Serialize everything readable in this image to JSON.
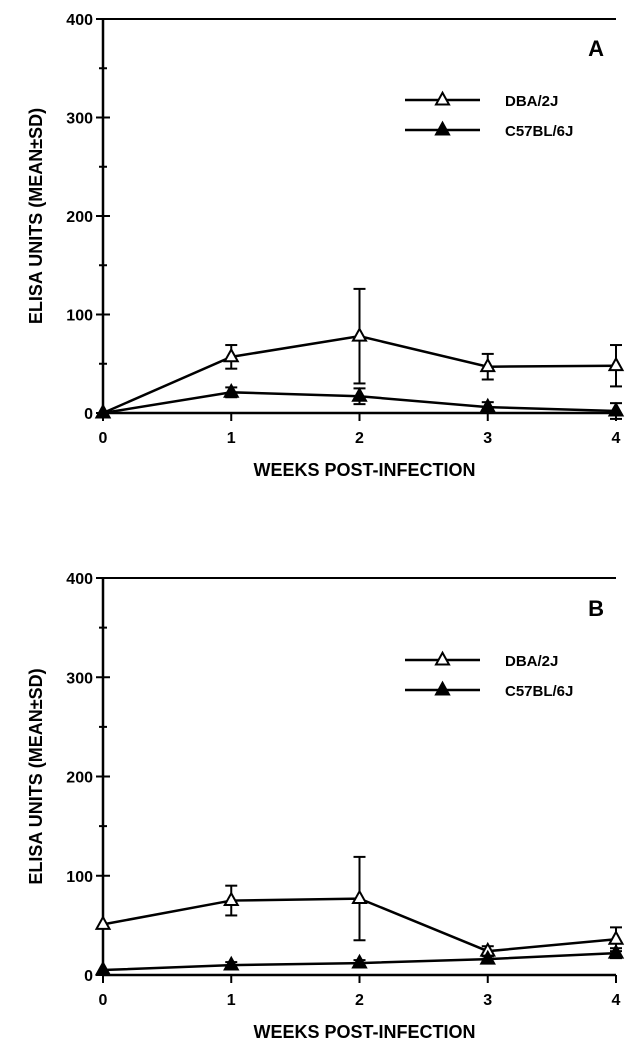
{
  "chart_data": [
    {
      "type": "line",
      "panel_label": "A",
      "xlabel": "WEEKS POST-INFECTION",
      "ylabel": "ELISA UNITS (MEAN±SD)",
      "x": [
        0,
        1,
        2,
        3,
        4
      ],
      "x_ticks": [
        "0",
        "1",
        "2",
        "3",
        "4"
      ],
      "y_ticks": [
        "0",
        "100",
        "200",
        "300",
        "400"
      ],
      "xlim": [
        0,
        4
      ],
      "ylim": [
        0,
        400
      ],
      "grid": false,
      "legend_position": "top-right",
      "series": [
        {
          "name": "DBA/2J",
          "marker": "open-triangle",
          "values": [
            0,
            57,
            78,
            47,
            48
          ],
          "error": [
            0,
            12,
            48,
            13,
            21
          ]
        },
        {
          "name": "C57BL/6J",
          "marker": "filled-triangle",
          "values": [
            0,
            21,
            17,
            6,
            2
          ],
          "error": [
            0,
            5,
            8,
            5,
            8
          ]
        }
      ]
    },
    {
      "type": "line",
      "panel_label": "B",
      "xlabel": "WEEKS POST-INFECTION",
      "ylabel": "ELISA UNITS (MEAN±SD)",
      "x": [
        0,
        1,
        2,
        3,
        4
      ],
      "x_ticks": [
        "0",
        "1",
        "2",
        "3",
        "4"
      ],
      "y_ticks": [
        "0",
        "100",
        "200",
        "300",
        "400"
      ],
      "xlim": [
        0,
        4
      ],
      "ylim": [
        0,
        400
      ],
      "grid": false,
      "legend_position": "top-right",
      "series": [
        {
          "name": "DBA/2J",
          "marker": "open-triangle",
          "values": [
            51,
            75,
            77,
            24,
            36
          ],
          "error": [
            0,
            15,
            42,
            5,
            12
          ]
        },
        {
          "name": "C57BL/6J",
          "marker": "filled-triangle",
          "values": [
            5,
            10,
            12,
            16,
            22
          ],
          "error": [
            0,
            3,
            3,
            3,
            5
          ]
        }
      ]
    }
  ]
}
